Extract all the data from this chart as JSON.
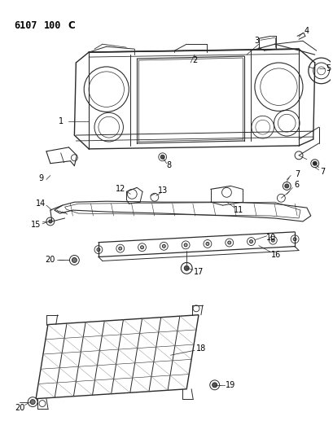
{
  "title": "6107 100C",
  "bg": "#ffffff",
  "lc": "#2a2a2a",
  "tc": "#000000",
  "fig_w": 4.1,
  "fig_h": 5.33,
  "dpi": 100
}
